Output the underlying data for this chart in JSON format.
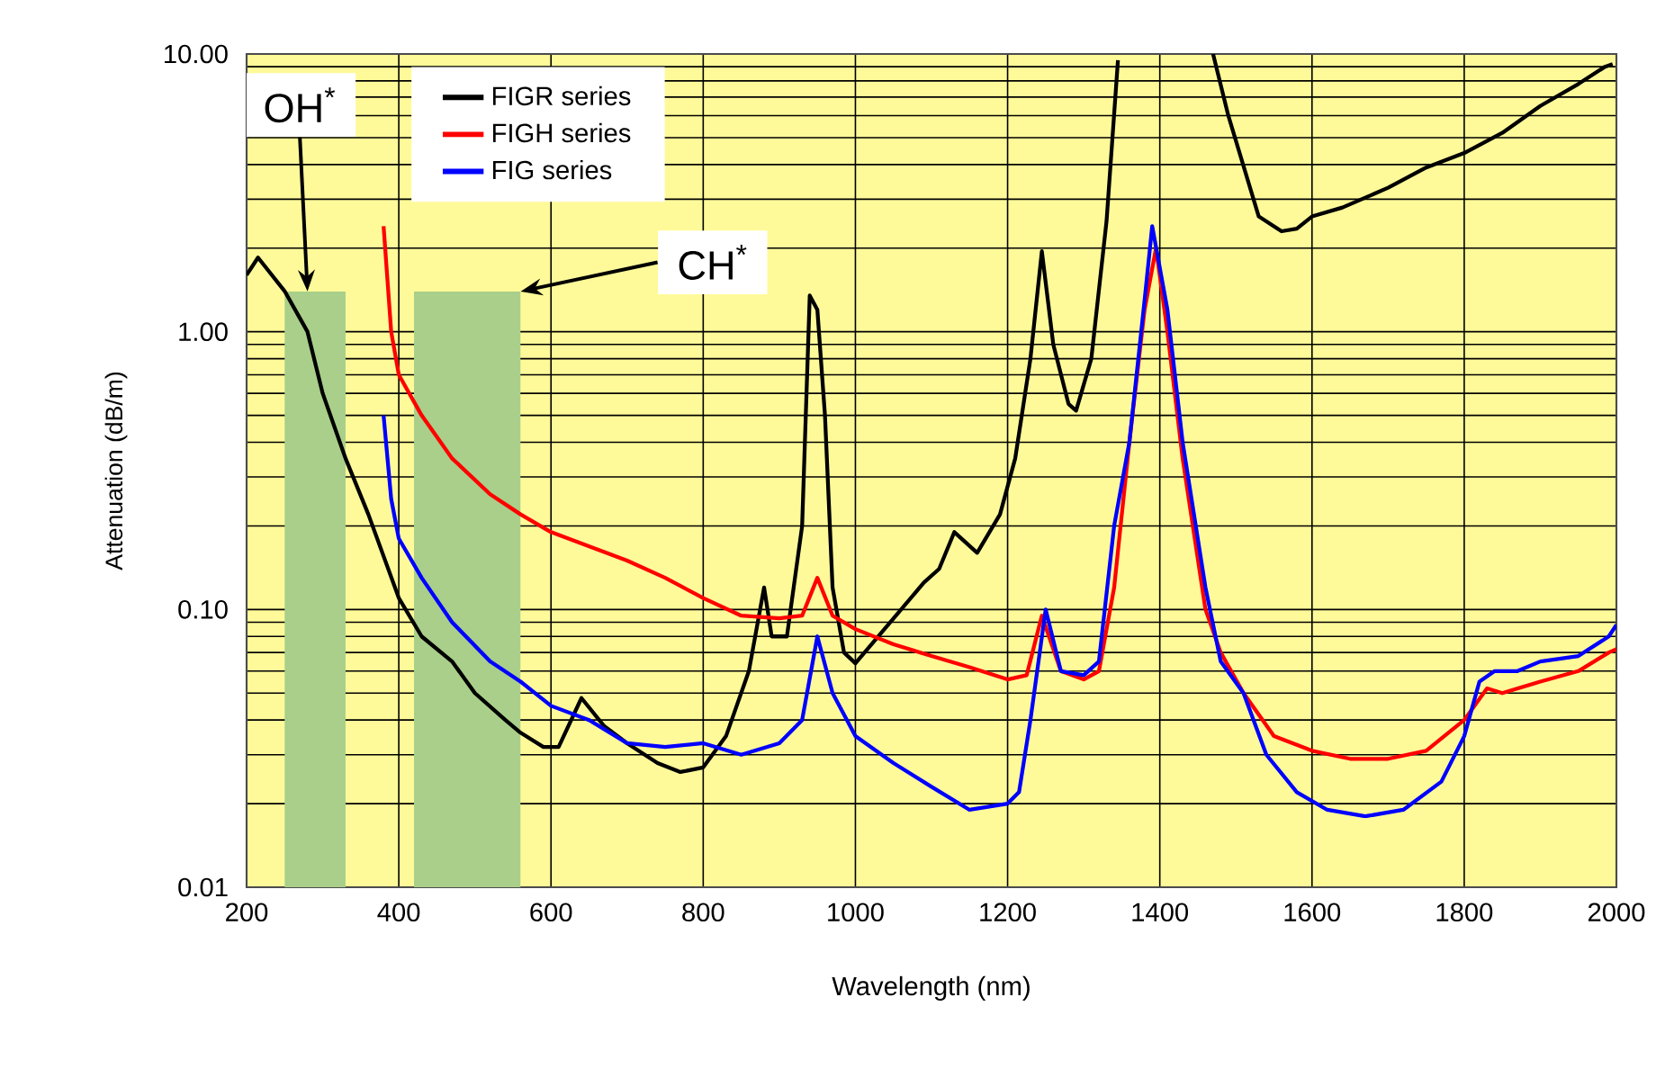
{
  "chart_data": {
    "type": "line",
    "xlabel": "Wavelength (nm)",
    "ylabel": "Attenuation (dB/m)",
    "xlim": [
      200,
      2000
    ],
    "xticks": [
      200,
      400,
      600,
      800,
      1000,
      1200,
      1400,
      1600,
      1800,
      2000
    ],
    "ylim": [
      0.01,
      10
    ],
    "yticks": [
      {
        "value": 0.01,
        "label": "0.01"
      },
      {
        "value": 0.1,
        "label": "0.10"
      },
      {
        "value": 1,
        "label": "1.00"
      },
      {
        "value": 10,
        "label": "10.00"
      }
    ],
    "log": "y",
    "grid": true,
    "legend": "top left",
    "line_style": "solid",
    "marker": "none",
    "bands": [
      {
        "axis": "x",
        "from": 250,
        "to": 330,
        "label": "OH$^{*}$",
        "color": "#a9cf8a"
      },
      {
        "axis": "x",
        "from": 420,
        "to": 560,
        "label": "CH$^{*}$",
        "color": "#a9cf8a"
      }
    ],
    "series": [
      {
        "name": "FIGR series",
        "color": "#000000",
        "x": [
          200,
          215,
          250,
          280,
          300,
          330,
          360,
          400,
          430,
          470,
          500,
          540,
          560,
          590,
          610,
          640,
          670,
          700,
          740,
          770,
          800,
          830,
          860,
          880,
          890,
          910,
          930,
          940,
          950,
          960,
          970,
          985,
          1000,
          1030,
          1060,
          1090,
          1110,
          1130,
          1160,
          1190,
          1210,
          1230,
          1245,
          1260,
          1280,
          1290,
          1310,
          1330,
          1345,
          1400,
          1470,
          1490,
          1530,
          1560,
          1580,
          1600,
          1640,
          1700,
          1750,
          1800,
          1850,
          1900,
          1950,
          1985,
          1995
        ],
        "values": [
          1.6,
          1.85,
          1.4,
          1.0,
          0.6,
          0.35,
          0.22,
          0.11,
          0.08,
          0.065,
          0.05,
          0.04,
          0.036,
          0.032,
          0.032,
          0.048,
          0.038,
          0.033,
          0.028,
          0.026,
          0.027,
          0.035,
          0.06,
          0.12,
          0.08,
          0.08,
          0.2,
          1.35,
          1.2,
          0.5,
          0.12,
          0.07,
          0.064,
          0.08,
          0.1,
          0.125,
          0.14,
          0.19,
          0.16,
          0.22,
          0.35,
          0.8,
          1.95,
          0.9,
          0.55,
          0.52,
          0.8,
          2.5,
          9.5,
          null,
          10,
          6,
          2.6,
          2.3,
          2.35,
          2.6,
          2.8,
          3.3,
          3.9,
          4.4,
          5.2,
          6.5,
          7.8,
          9.0,
          9.2
        ]
      },
      {
        "name": "FIGH series",
        "color": "#ff0000",
        "x": [
          380,
          390,
          400,
          430,
          470,
          520,
          560,
          600,
          700,
          750,
          800,
          850,
          900,
          930,
          950,
          970,
          1000,
          1050,
          1100,
          1150,
          1200,
          1225,
          1245,
          1270,
          1300,
          1320,
          1340,
          1360,
          1380,
          1395,
          1410,
          1430,
          1460,
          1480,
          1510,
          1550,
          1600,
          1650,
          1700,
          1750,
          1800,
          1830,
          1850,
          1900,
          1950,
          1990,
          2000
        ],
        "values": [
          2.4,
          1.0,
          0.7,
          0.5,
          0.35,
          0.26,
          0.22,
          0.19,
          0.15,
          0.13,
          0.11,
          0.095,
          0.093,
          0.095,
          0.13,
          0.095,
          0.085,
          0.075,
          0.068,
          0.062,
          0.056,
          0.058,
          0.095,
          0.06,
          0.056,
          0.06,
          0.12,
          0.4,
          1.2,
          2.0,
          1.0,
          0.35,
          0.1,
          0.07,
          0.05,
          0.035,
          0.031,
          0.029,
          0.029,
          0.031,
          0.04,
          0.052,
          0.05,
          0.055,
          0.06,
          0.07,
          0.072
        ]
      },
      {
        "name": "FIG series",
        "color": "#0000ff",
        "x": [
          380,
          390,
          400,
          430,
          470,
          520,
          560,
          600,
          650,
          700,
          750,
          800,
          850,
          900,
          930,
          950,
          970,
          1000,
          1050,
          1100,
          1150,
          1200,
          1215,
          1230,
          1250,
          1270,
          1300,
          1320,
          1340,
          1360,
          1380,
          1390,
          1410,
          1430,
          1460,
          1480,
          1510,
          1540,
          1580,
          1620,
          1670,
          1720,
          1770,
          1800,
          1820,
          1840,
          1870,
          1900,
          1950,
          1990,
          2000
        ],
        "values": [
          0.5,
          0.25,
          0.18,
          0.13,
          0.09,
          0.065,
          0.055,
          0.045,
          0.04,
          0.033,
          0.032,
          0.033,
          0.03,
          0.033,
          0.04,
          0.08,
          0.05,
          0.035,
          0.028,
          0.023,
          0.019,
          0.02,
          0.022,
          0.04,
          0.1,
          0.06,
          0.058,
          0.065,
          0.2,
          0.4,
          1.3,
          2.4,
          1.2,
          0.4,
          0.12,
          0.065,
          0.05,
          0.03,
          0.022,
          0.019,
          0.018,
          0.019,
          0.024,
          0.035,
          0.055,
          0.06,
          0.06,
          0.065,
          0.068,
          0.08,
          0.088
        ]
      }
    ]
  }
}
